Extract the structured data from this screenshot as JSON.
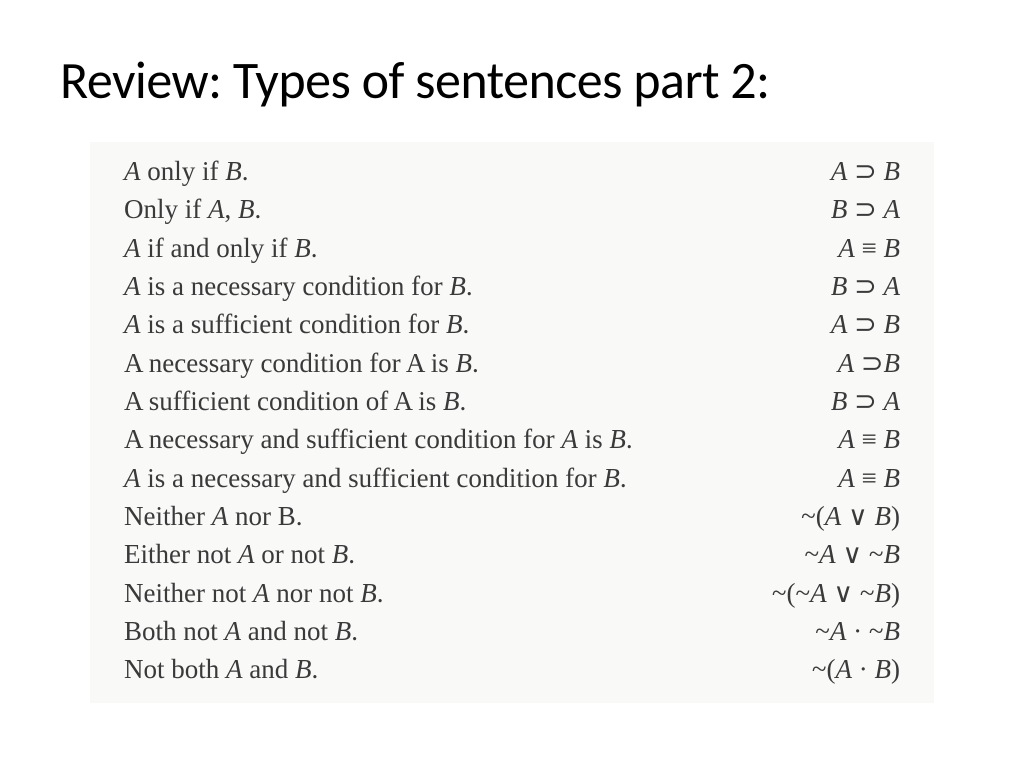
{
  "title": "Review: Types of sentences part 2:",
  "rows": [
    {
      "english": "<span class='it'>A</span> only if <span class='it'>B</span>.",
      "symbolic": "<span class='it'>A</span> ⊃ <span class='it'>B</span>"
    },
    {
      "english": "Only if <span class='it'>A</span>, <span class='it'>B</span>.",
      "symbolic": "<span class='it'>B</span> ⊃ <span class='it'>A</span>"
    },
    {
      "english": "<span class='it'>A</span> if and only if <span class='it'>B</span>.",
      "symbolic": "<span class='it'>A</span> ≡ <span class='it'>B</span>"
    },
    {
      "english": "<span class='it'>A</span> is a necessary condition for <span class='it'>B</span>.",
      "symbolic": "<span class='it'>B</span> ⊃ <span class='it'>A</span>"
    },
    {
      "english": "<span class='it'>A</span> is a sufficient condition for <span class='it'>B</span>.",
      "symbolic": "<span class='it'>A</span> ⊃ <span class='it'>B</span>"
    },
    {
      "english": "A necessary condition for A is <span class='it'>B</span>.",
      "symbolic": "<span class='it'>A</span> ⊃<span class='it'>B</span>"
    },
    {
      "english": "A sufficient condition of A is <span class='it'>B</span>.",
      "symbolic": "<span class='it'>B</span> ⊃ <span class='it'>A</span>"
    },
    {
      "english": "A necessary and sufficient condition for <span class='it'>A</span> is <span class='it'>B</span>.",
      "symbolic": "<span class='it'>A</span> ≡ <span class='it'>B</span>"
    },
    {
      "english": "<span class='it'>A</span> is a necessary and sufficient condition for <span class='it'>B</span>.",
      "symbolic": "<span class='it'>A</span> ≡ <span class='it'>B</span>"
    },
    {
      "english": "Neither <span class='it'>A</span> nor B.",
      "symbolic": "~(<span class='it'>A</span> ∨ <span class='it'>B</span>)"
    },
    {
      "english": "Either not <span class='it'>A</span> or not <span class='it'>B</span>.",
      "symbolic": "~<span class='it'>A</span> ∨ ~<span class='it'>B</span>"
    },
    {
      "english": "Neither not <span class='it'>A</span> nor not <span class='it'>B</span>.",
      "symbolic": "~(~<span class='it'>A</span> ∨ ~<span class='it'>B</span>)"
    },
    {
      "english": "Both not <span class='it'>A</span> and not <span class='it'>B</span>.",
      "symbolic": "~<span class='it'>A</span> · ~<span class='it'>B</span>"
    },
    {
      "english": "Not both <span class='it'>A</span> and <span class='it'>B</span>.",
      "symbolic": "~(<span class='it'>A</span> · <span class='it'>B</span>)"
    }
  ],
  "styling": {
    "title_fontsize": 52,
    "body_fontsize": 27,
    "title_font": "Calibri",
    "body_font": "Times New Roman",
    "background_color": "#ffffff",
    "table_bg_color": "#f9f9f8",
    "text_color": "#3a3a3a"
  }
}
